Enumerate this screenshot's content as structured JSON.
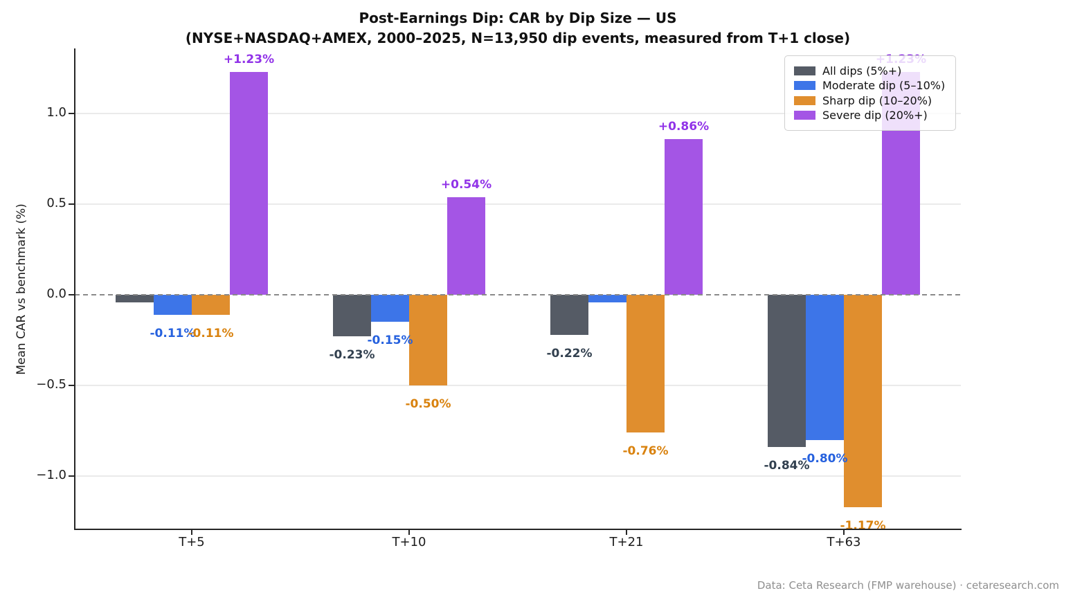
{
  "title": {
    "line1": "Post-Earnings Dip: CAR by Dip Size — US",
    "line2": "(NYSE+NASDAQ+AMEX, 2000–2025, N=13,950 dip events, measured from T+1 close)"
  },
  "axes": {
    "ylabel": "Mean CAR vs benchmark (%)",
    "yticks": [
      {
        "value": 1.0,
        "label": "1.0"
      },
      {
        "value": 0.5,
        "label": "0.5"
      },
      {
        "value": 0.0,
        "label": "0.0"
      },
      {
        "value": -0.5,
        "label": "−0.5"
      },
      {
        "value": -1.0,
        "label": "−1.0"
      }
    ]
  },
  "chart_data": {
    "type": "bar",
    "title": "Post-Earnings Dip: CAR by Dip Size — US (NYSE+NASDAQ+AMEX, 2000–2025, N=13,950 dip events, measured from T+1 close)",
    "xlabel": "",
    "ylabel": "Mean CAR vs benchmark (%)",
    "categories": [
      "T+5",
      "T+10",
      "T+21",
      "T+63"
    ],
    "series": [
      {
        "key": "all-dips",
        "name": "All dips (5%+)",
        "color": "#555b65",
        "label_color": "#32404f",
        "values": [
          -0.04,
          -0.23,
          -0.22,
          -0.84
        ],
        "labels": [
          "",
          "-0.23%",
          "-0.22%",
          "-0.84%"
        ]
      },
      {
        "key": "moderate-dip",
        "name": "Moderate dip (5–10%)",
        "color": "#3d75e8",
        "label_color": "#2661de",
        "values": [
          -0.11,
          -0.15,
          -0.04,
          -0.8
        ],
        "labels": [
          "-0.11%",
          "-0.15%",
          "",
          "-0.80%"
        ]
      },
      {
        "key": "sharp-dip",
        "name": "Sharp dip (10–20%)",
        "color": "#e08e2e",
        "label_color": "#d9820e",
        "values": [
          -0.11,
          -0.5,
          -0.76,
          -1.17
        ],
        "labels": [
          "-0.11%",
          "-0.50%",
          "-0.76%",
          "-1.17%"
        ]
      },
      {
        "key": "severe-dip",
        "name": "Severe dip (20%+)",
        "color": "#a455e5",
        "label_color": "#9133e8",
        "values": [
          1.23,
          0.54,
          0.86,
          1.23
        ],
        "labels": [
          "+1.23%",
          "+0.54%",
          "+0.86%",
          "+1.23%"
        ]
      }
    ],
    "ylim": [
      -1.29,
      1.36
    ],
    "grid": "horizontal-gridlines-at-nonzero-ticks",
    "zero_line": "dashed-gray",
    "legend_position": "upper right"
  },
  "footer": "Data: Ceta Research (FMP warehouse) · cetaresearch.com"
}
